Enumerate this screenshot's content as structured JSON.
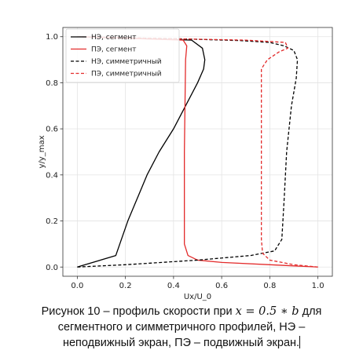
{
  "chart_data": {
    "type": "line",
    "xlabel": "Ux/U_0",
    "ylabel": "y/y_max",
    "xlim": [
      -0.06,
      1.06
    ],
    "ylim": [
      -0.04,
      1.04
    ],
    "x_ticks": [
      "0.0",
      "0.2",
      "0.4",
      "0.6",
      "0.8",
      "1.0"
    ],
    "y_ticks": [
      "0.0",
      "0.2",
      "0.4",
      "0.6",
      "0.8",
      "1.0"
    ],
    "grid": true,
    "legend_position": "top-left",
    "series": [
      {
        "name": "НЭ, сегмент",
        "style": "solid",
        "color": "#000000",
        "points": [
          [
            0.0,
            0.0
          ],
          [
            0.16,
            0.05
          ],
          [
            0.18,
            0.11
          ],
          [
            0.21,
            0.2
          ],
          [
            0.25,
            0.3
          ],
          [
            0.29,
            0.4
          ],
          [
            0.34,
            0.5
          ],
          [
            0.4,
            0.6
          ],
          [
            0.45,
            0.7
          ],
          [
            0.5,
            0.8
          ],
          [
            0.525,
            0.86
          ],
          [
            0.53,
            0.9
          ],
          [
            0.52,
            0.95
          ],
          [
            0.475,
            0.985
          ],
          [
            0.0,
            1.0
          ]
        ]
      },
      {
        "name": "ПЭ, сегмент",
        "style": "solid",
        "color": "#e32b2b",
        "points": [
          [
            1.0,
            0.0
          ],
          [
            0.8,
            0.01
          ],
          [
            0.6,
            0.02
          ],
          [
            0.5,
            0.03
          ],
          [
            0.46,
            0.05
          ],
          [
            0.445,
            0.1
          ],
          [
            0.445,
            0.5
          ],
          [
            0.45,
            0.9
          ],
          [
            0.455,
            0.96
          ],
          [
            0.44,
            0.985
          ],
          [
            0.0,
            1.0
          ]
        ]
      },
      {
        "name": "НЭ, симметричный",
        "style": "dashed",
        "color": "#000000",
        "points": [
          [
            0.0,
            0.0
          ],
          [
            0.2,
            0.01
          ],
          [
            0.5,
            0.03
          ],
          [
            0.72,
            0.05
          ],
          [
            0.82,
            0.07
          ],
          [
            0.85,
            0.12
          ],
          [
            0.86,
            0.3
          ],
          [
            0.87,
            0.5
          ],
          [
            0.89,
            0.7
          ],
          [
            0.91,
            0.82
          ],
          [
            0.915,
            0.9
          ],
          [
            0.9,
            0.94
          ],
          [
            0.86,
            0.96
          ],
          [
            0.8,
            0.975
          ],
          [
            0.68,
            0.983
          ],
          [
            0.45,
            0.99
          ],
          [
            0.0,
            1.0
          ]
        ]
      },
      {
        "name": "ПЭ, симметричный",
        "style": "dashed",
        "color": "#e32b2b",
        "points": [
          [
            1.0,
            0.0
          ],
          [
            0.9,
            0.01
          ],
          [
            0.8,
            0.03
          ],
          [
            0.77,
            0.06
          ],
          [
            0.765,
            0.12
          ],
          [
            0.765,
            0.5
          ],
          [
            0.765,
            0.86
          ],
          [
            0.79,
            0.9
          ],
          [
            0.84,
            0.935
          ],
          [
            0.875,
            0.95
          ],
          [
            0.865,
            0.975
          ],
          [
            0.7,
            0.985
          ],
          [
            0.45,
            0.99
          ],
          [
            0.0,
            1.0
          ]
        ]
      }
    ]
  },
  "caption": {
    "line1_prefix": "Рисунок 10 – профиль скорости при ",
    "math": "x = 0.5 ∗ b",
    "line1_suffix": " для",
    "line2": "сегментного и симметричного профилей, НЭ –",
    "line3": "неподвижный экран, ПЭ – подвижный экран."
  }
}
